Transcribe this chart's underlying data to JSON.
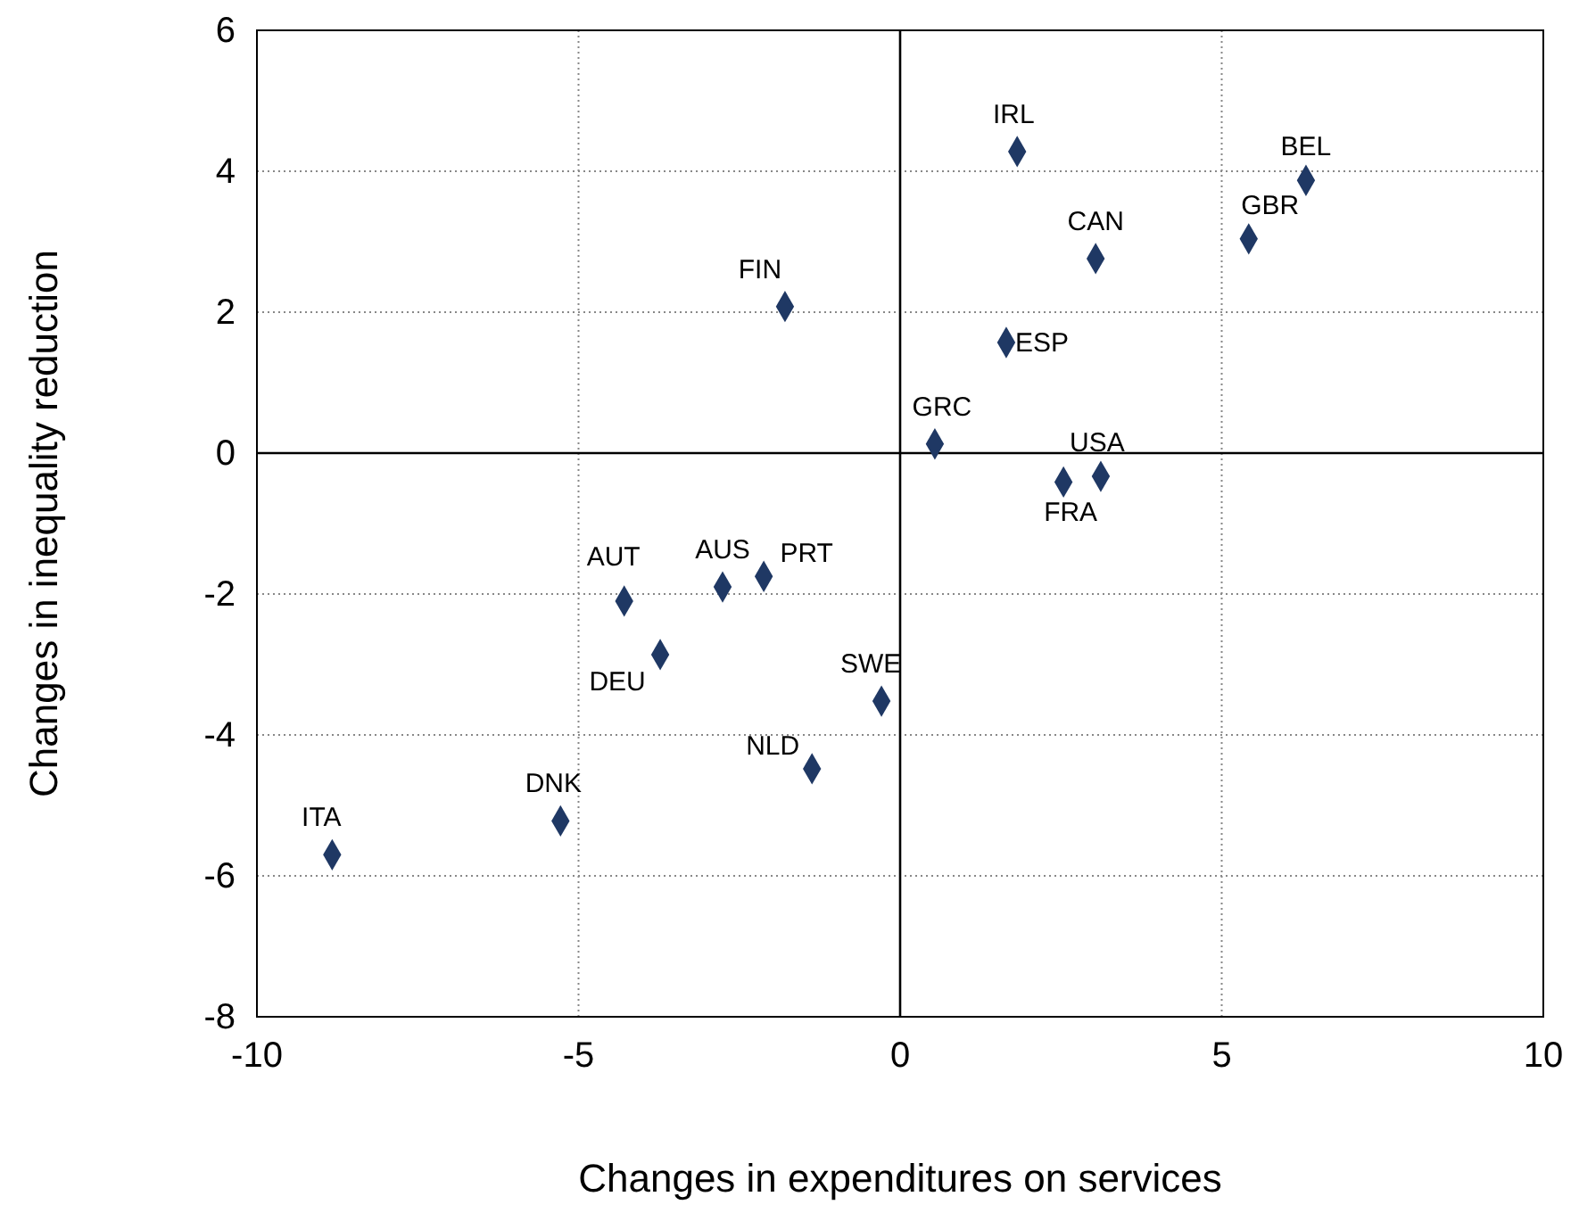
{
  "chart_data": {
    "type": "scatter",
    "xlabel": "Changes in expenditures on services",
    "ylabel": "Changes in inequality reduction",
    "x": [
      1.82,
      6.31,
      5.42,
      3.04,
      -1.79,
      1.65,
      0.54,
      3.12,
      2.54,
      -4.29,
      -2.76,
      -2.12,
      -3.73,
      -0.29,
      -1.37,
      -5.28,
      -8.83
    ],
    "series": [
      {
        "color": "#1f3864",
        "values": [
          4.28,
          3.87,
          3.04,
          2.76,
          2.08,
          1.57,
          0.13,
          -0.33,
          -0.41,
          -2.1,
          -1.9,
          -1.75,
          -2.86,
          -3.52,
          -4.48,
          -5.22,
          -5.7
        ]
      }
    ],
    "annotations": [
      {
        "text": "IRL",
        "x": 1.82,
        "y": 4.28
      },
      {
        "text": "BEL",
        "x": 6.31,
        "y": 3.87
      },
      {
        "text": "GBR",
        "x": 5.42,
        "y": 3.04
      },
      {
        "text": "CAN",
        "x": 3.04,
        "y": 2.76
      },
      {
        "text": "FIN",
        "x": -1.79,
        "y": 2.08
      },
      {
        "text": "ESP",
        "x": 1.65,
        "y": 1.57
      },
      {
        "text": "GRC",
        "x": 0.54,
        "y": 0.13
      },
      {
        "text": "USA",
        "x": 3.12,
        "y": -0.33
      },
      {
        "text": "FRA",
        "x": 2.54,
        "y": -0.41
      },
      {
        "text": "AUT",
        "x": -4.29,
        "y": -2.1
      },
      {
        "text": "AUS",
        "x": -2.76,
        "y": -1.9
      },
      {
        "text": "PRT",
        "x": -2.12,
        "y": -1.75
      },
      {
        "text": "DEU",
        "x": -3.73,
        "y": -2.86
      },
      {
        "text": "SWE",
        "x": -0.29,
        "y": -3.52
      },
      {
        "text": "NLD",
        "x": -1.37,
        "y": -4.48
      },
      {
        "text": "DNK",
        "x": -5.28,
        "y": -5.22
      },
      {
        "text": "ITA",
        "x": -8.83,
        "y": -5.7
      }
    ],
    "xlim": [
      -10,
      10
    ],
    "xticks": [
      -10,
      -5,
      0,
      5,
      10
    ],
    "ylim": [
      -8,
      6
    ],
    "yticks": [
      -8,
      -6,
      -4,
      -2,
      0,
      2,
      4,
      6
    ],
    "grid": true,
    "marker": "diamond"
  }
}
